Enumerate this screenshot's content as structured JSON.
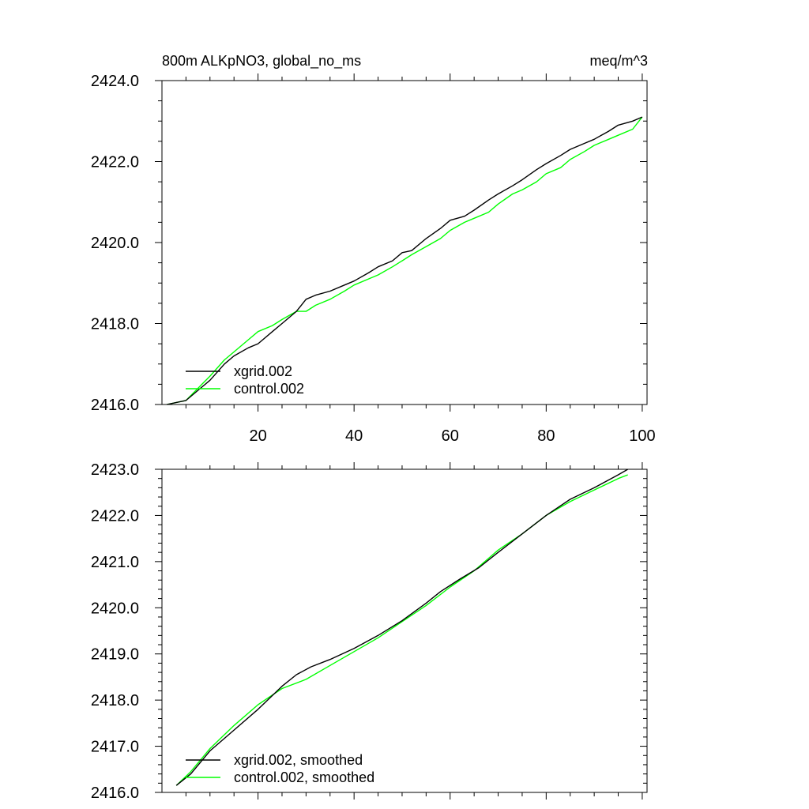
{
  "chart_data": [
    {
      "type": "line",
      "title": "800m ALKpNO3, global_no_ms",
      "units": "meq/m^3",
      "xlim": [
        0,
        101
      ],
      "ylim": [
        2416.0,
        2424.0
      ],
      "x_ticks": [
        20,
        40,
        60,
        80,
        100
      ],
      "x_tick_labels": [
        "20",
        "40",
        "60",
        "80",
        "100"
      ],
      "y_ticks": [
        2416.0,
        2418.0,
        2420.0,
        2422.0,
        2424.0
      ],
      "y_tick_labels": [
        "2416.0",
        "2418.0",
        "2420.0",
        "2422.0",
        "2424.0"
      ],
      "grid": false,
      "legend_position": "bottom-left",
      "series": [
        {
          "name": "xgrid.002",
          "color": "#000000",
          "x": [
            1,
            5,
            10,
            13,
            15,
            18,
            20,
            23,
            25,
            28,
            30,
            32,
            35,
            38,
            40,
            43,
            45,
            48,
            50,
            52,
            55,
            58,
            60,
            63,
            65,
            68,
            70,
            73,
            75,
            78,
            80,
            83,
            85,
            88,
            90,
            93,
            95,
            98,
            100
          ],
          "values": [
            2416.0,
            2416.1,
            2416.6,
            2417.0,
            2417.2,
            2417.4,
            2417.5,
            2417.8,
            2418.0,
            2418.3,
            2418.6,
            2418.7,
            2418.8,
            2418.95,
            2419.05,
            2419.25,
            2419.4,
            2419.55,
            2419.75,
            2419.8,
            2420.1,
            2420.35,
            2420.55,
            2420.65,
            2420.8,
            2421.05,
            2421.2,
            2421.4,
            2421.55,
            2421.8,
            2421.95,
            2422.15,
            2422.3,
            2422.45,
            2422.55,
            2422.75,
            2422.9,
            2423.0,
            2423.1
          ]
        },
        {
          "name": "control.002",
          "color": "#00ff00",
          "x": [
            1,
            5,
            10,
            13,
            15,
            18,
            20,
            23,
            25,
            28,
            30,
            32,
            35,
            38,
            40,
            43,
            45,
            48,
            50,
            52,
            55,
            58,
            60,
            63,
            65,
            68,
            70,
            73,
            75,
            78,
            80,
            83,
            85,
            88,
            90,
            93,
            95,
            98,
            100
          ],
          "values": [
            2416.0,
            2416.1,
            2416.7,
            2417.1,
            2417.3,
            2417.6,
            2417.8,
            2417.95,
            2418.1,
            2418.3,
            2418.3,
            2418.45,
            2418.6,
            2418.8,
            2418.95,
            2419.1,
            2419.2,
            2419.4,
            2419.55,
            2419.7,
            2419.9,
            2420.1,
            2420.3,
            2420.5,
            2420.6,
            2420.75,
            2420.95,
            2421.2,
            2421.3,
            2421.5,
            2421.7,
            2421.85,
            2422.05,
            2422.25,
            2422.4,
            2422.55,
            2422.65,
            2422.8,
            2423.1
          ]
        }
      ]
    },
    {
      "type": "line",
      "xlim": [
        0,
        101
      ],
      "ylim": [
        2416.0,
        2423.0
      ],
      "x_ticks": [
        20,
        40,
        60,
        80,
        100
      ],
      "y_ticks": [
        2416.0,
        2417.0,
        2418.0,
        2419.0,
        2420.0,
        2421.0,
        2422.0,
        2423.0
      ],
      "y_tick_labels": [
        "2416.0",
        "2417.0",
        "2418.0",
        "2419.0",
        "2420.0",
        "2421.0",
        "2422.0",
        "2423.0"
      ],
      "grid": false,
      "legend_position": "bottom-left",
      "series": [
        {
          "name": "xgrid.002, smoothed",
          "color": "#000000",
          "x": [
            3,
            6,
            10,
            15,
            20,
            25,
            28,
            31,
            35,
            40,
            45,
            50,
            55,
            58,
            62,
            66,
            70,
            75,
            80,
            85,
            90,
            95,
            97
          ],
          "values": [
            2416.15,
            2416.4,
            2416.9,
            2417.35,
            2417.8,
            2418.3,
            2418.55,
            2418.72,
            2418.88,
            2419.12,
            2419.4,
            2419.72,
            2420.1,
            2420.35,
            2420.62,
            2420.87,
            2421.2,
            2421.6,
            2422.0,
            2422.35,
            2422.6,
            2422.88,
            2423.0
          ]
        },
        {
          "name": "control.002, smoothed",
          "color": "#00ff00",
          "x": [
            3,
            6,
            10,
            15,
            20,
            25,
            30,
            35,
            40,
            45,
            50,
            55,
            60,
            65,
            70,
            75,
            80,
            85,
            90,
            95,
            97
          ],
          "values": [
            2416.15,
            2416.45,
            2416.95,
            2417.45,
            2417.9,
            2418.25,
            2418.45,
            2418.75,
            2419.05,
            2419.35,
            2419.7,
            2420.05,
            2420.45,
            2420.8,
            2421.25,
            2421.6,
            2422.0,
            2422.3,
            2422.55,
            2422.8,
            2422.88
          ]
        }
      ]
    }
  ]
}
